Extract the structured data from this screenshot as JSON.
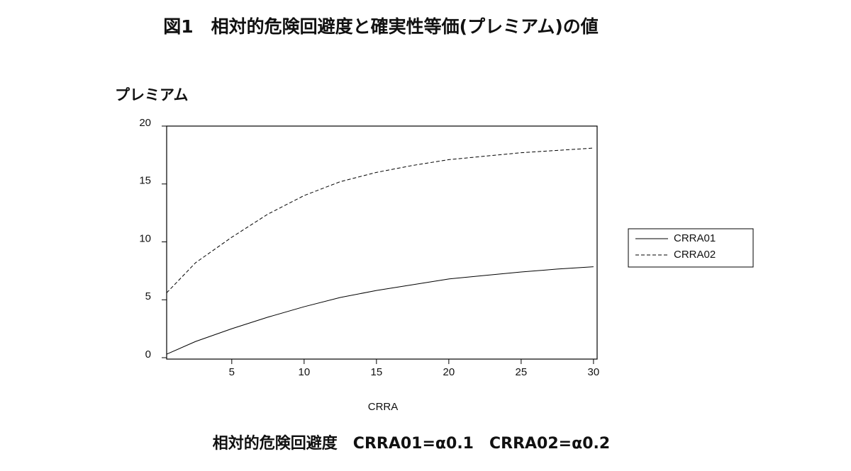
{
  "chart_data": {
    "type": "line",
    "title": "図1　相対的危険回避度と確実性等価(プレミアム)の値",
    "y_label": "プレミアム",
    "x_label": "CRRA",
    "caption": "相対的危険回避度　CRRA01=α0.1　CRRA02=α0.2",
    "x": [
      0.5,
      2.5,
      5,
      7.5,
      10,
      12.5,
      15,
      17.5,
      20,
      22.5,
      25,
      27.5,
      30
    ],
    "series": [
      {
        "name": "CRRA01",
        "color": "#000000",
        "line_style": "solid",
        "values": [
          0.3,
          1.4,
          2.5,
          3.5,
          4.4,
          5.2,
          5.8,
          6.3,
          6.8,
          7.1,
          7.4,
          7.65,
          7.85
        ]
      },
      {
        "name": "CRRA02",
        "color": "#000000",
        "line_style": "dashed",
        "values": [
          5.6,
          8.2,
          10.4,
          12.4,
          14.0,
          15.2,
          16.0,
          16.6,
          17.1,
          17.4,
          17.7,
          17.9,
          18.1
        ]
      }
    ],
    "xlim": [
      0.5,
      30.25
    ],
    "xticks": [
      5,
      10,
      15,
      20,
      25,
      30
    ],
    "ylim": [
      0,
      20
    ],
    "yticks": [
      0,
      5,
      10,
      15,
      20
    ],
    "grid": false,
    "legend": "right"
  }
}
